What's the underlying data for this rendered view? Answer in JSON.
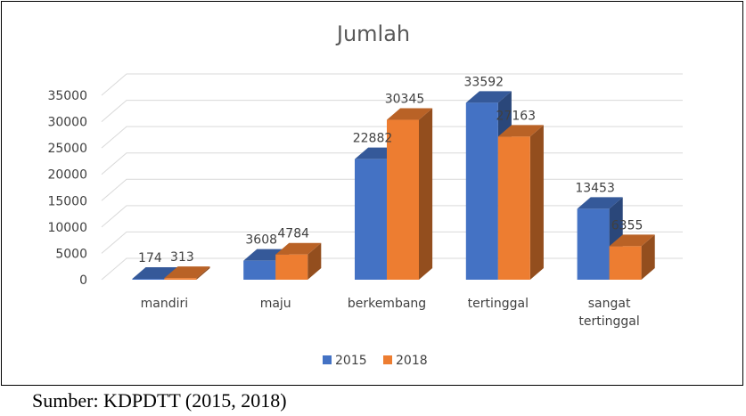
{
  "chart_data": {
    "type": "bar",
    "title": "Jumlah",
    "xlabel": "",
    "ylabel": "",
    "categories": [
      "mandiri",
      "maju",
      "berkembang",
      "tertinggal",
      "sangat tertinggal"
    ],
    "series": [
      {
        "name": "2015",
        "values": [
          174,
          3608,
          22882,
          33592,
          13453
        ],
        "color": "#4472C4"
      },
      {
        "name": "2018",
        "values": [
          313,
          4784,
          30345,
          27163,
          6355
        ],
        "color": "#ED7D31"
      }
    ],
    "ylim": [
      0,
      35000
    ],
    "yticks": [
      0,
      5000,
      10000,
      15000,
      20000,
      25000,
      30000,
      35000
    ],
    "grid": true,
    "legend_position": "bottom",
    "style": "3d-clustered-column"
  },
  "source_note": "Sumber: KDPDTT (2015, 2018)"
}
